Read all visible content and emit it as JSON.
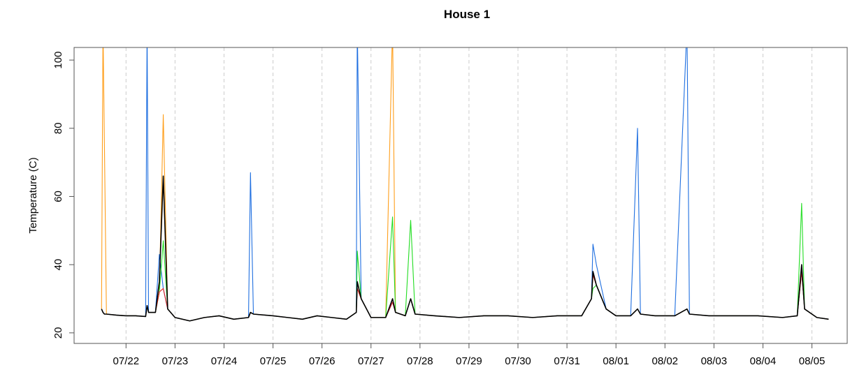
{
  "chart_data": {
    "type": "line",
    "title": "House 1",
    "y_label": "Temperature (C)",
    "x": [
      21.5,
      21.53,
      21.56,
      21.6,
      21.8,
      22.0,
      22.2,
      22.4,
      22.43,
      22.46,
      22.6,
      22.68,
      22.76,
      22.85,
      23.0,
      23.3,
      23.6,
      23.9,
      24.2,
      24.5,
      24.54,
      24.6,
      25.0,
      25.3,
      25.6,
      25.9,
      26.2,
      26.5,
      26.7,
      26.72,
      26.8,
      27.0,
      27.3,
      27.44,
      27.5,
      27.7,
      27.81,
      27.9,
      28.3,
      28.8,
      29.3,
      29.8,
      30.3,
      30.8,
      31.3,
      31.5,
      31.53,
      31.6,
      31.8,
      32.0,
      32.3,
      32.44,
      32.5,
      32.8,
      33.2,
      33.45,
      33.5,
      33.9,
      34.4,
      34.9,
      35.4,
      35.7,
      35.79,
      35.85,
      36.1,
      36.34
    ],
    "series": [
      {
        "color": "#ff9f1c",
        "values": [
          27,
          110,
          74,
          25.5,
          25.2,
          25,
          25,
          24.8,
          28,
          26,
          26,
          32,
          84,
          27,
          24.5,
          23.5,
          24.5,
          25,
          24,
          24.5,
          26,
          25.5,
          25,
          24.5,
          24,
          25,
          24.5,
          24,
          26,
          33,
          30,
          24.5,
          24.5,
          110,
          26,
          25,
          30,
          25.5,
          25,
          24.5,
          25,
          25,
          24.5,
          25,
          25,
          30,
          37,
          34,
          27,
          25,
          25,
          27,
          25.5,
          25,
          25,
          27,
          25.5,
          25,
          25,
          25,
          24.5,
          25,
          38,
          27,
          24.5,
          24
        ]
      },
      {
        "color": "#1f6fe0",
        "values": [
          27,
          26,
          25.5,
          25.5,
          25.2,
          25,
          25,
          24.8,
          110,
          26,
          26,
          43,
          33,
          27,
          24.5,
          23.5,
          24.5,
          25,
          24,
          24.5,
          67,
          25.5,
          25,
          24.5,
          24,
          25,
          24.5,
          24,
          26,
          110,
          30,
          24.5,
          24.5,
          29,
          26,
          25,
          30,
          25.5,
          25,
          24.5,
          25,
          25,
          24.5,
          25,
          25,
          30,
          46,
          40,
          27,
          25,
          25,
          80,
          25.5,
          25,
          25,
          110,
          25.5,
          25,
          25,
          25,
          24.5,
          25,
          38,
          27,
          24.5,
          24
        ]
      },
      {
        "color": "#22dd22",
        "values": [
          27,
          26,
          25.5,
          25.5,
          25.2,
          25,
          25,
          24.8,
          28,
          26,
          26,
          32,
          47,
          27,
          24.5,
          23.5,
          24.5,
          25,
          24,
          24.5,
          26,
          25.5,
          25,
          24.5,
          24,
          25,
          24.5,
          24,
          26,
          44,
          30,
          24.5,
          24.5,
          54,
          26,
          25,
          53,
          25.5,
          25,
          24.5,
          25,
          25,
          24.5,
          25,
          25,
          30,
          33,
          34,
          27,
          25,
          25,
          27,
          25.5,
          25,
          25,
          27,
          25.5,
          25,
          25,
          25,
          24.5,
          25,
          58,
          27,
          24.5,
          24
        ]
      },
      {
        "color": "#e02020",
        "values": [
          27,
          26,
          25.5,
          25.5,
          25.2,
          25,
          25,
          24.8,
          28,
          26,
          26,
          32,
          33,
          27,
          24.5,
          23.5,
          24.5,
          25,
          24,
          24.5,
          26,
          25.5,
          25,
          24.5,
          24,
          25,
          24.5,
          24,
          26,
          33,
          30,
          24.5,
          24.5,
          29,
          26,
          25,
          30,
          25.5,
          25,
          24.5,
          25,
          25,
          24.5,
          25,
          25,
          30,
          37,
          34,
          27,
          25,
          25,
          27,
          25.5,
          25,
          25,
          27,
          25.5,
          25,
          25,
          25,
          24.5,
          25,
          38,
          27,
          24.5,
          24
        ]
      },
      {
        "color": "#000000",
        "values": [
          27,
          26,
          25.5,
          25.5,
          25.2,
          25,
          25,
          24.8,
          28,
          26,
          26,
          35,
          66,
          27,
          24.5,
          23.5,
          24.5,
          25,
          24,
          24.5,
          26,
          25.5,
          25,
          24.5,
          24,
          25,
          24.5,
          24,
          26,
          35,
          30,
          24.5,
          24.5,
          30,
          26,
          25,
          30,
          25.5,
          25,
          24.5,
          25,
          25,
          24.5,
          25,
          25,
          30,
          38,
          34,
          27,
          25,
          25,
          27,
          25.5,
          25,
          25,
          27,
          25.5,
          25,
          25,
          25,
          24.5,
          25,
          40,
          27,
          24.5,
          24
        ]
      }
    ],
    "xlim": [
      20.94,
      36.72
    ],
    "ylim": [
      16.9,
      103.7
    ],
    "xticks": [
      {
        "value": 22,
        "label": "07/22"
      },
      {
        "value": 23,
        "label": "07/23"
      },
      {
        "value": 24,
        "label": "07/24"
      },
      {
        "value": 25,
        "label": "07/25"
      },
      {
        "value": 26,
        "label": "07/26"
      },
      {
        "value": 27,
        "label": "07/27"
      },
      {
        "value": 28,
        "label": "07/28"
      },
      {
        "value": 29,
        "label": "07/29"
      },
      {
        "value": 30,
        "label": "07/30"
      },
      {
        "value": 31,
        "label": "07/31"
      },
      {
        "value": 32,
        "label": "08/01"
      },
      {
        "value": 33,
        "label": "08/02"
      },
      {
        "value": 34,
        "label": "08/03"
      },
      {
        "value": 35,
        "label": "08/04"
      },
      {
        "value": 36,
        "label": "08/05"
      }
    ],
    "yticks": [
      20,
      40,
      60,
      80,
      100
    ],
    "grid": true
  }
}
